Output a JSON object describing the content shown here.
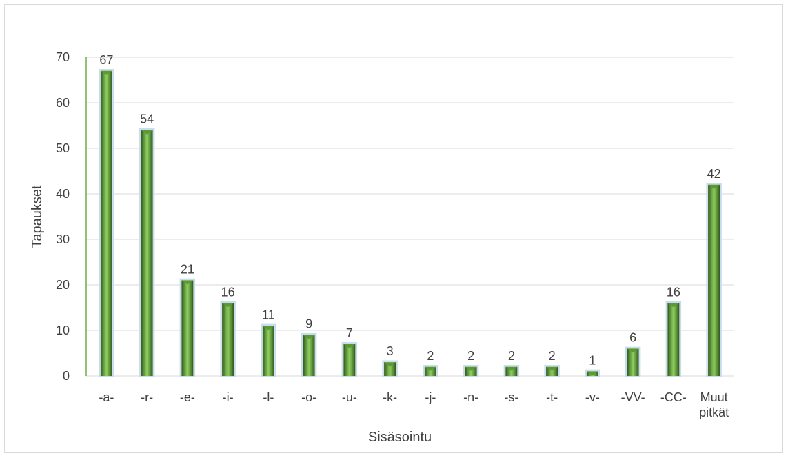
{
  "chart_data": {
    "type": "bar",
    "title": "",
    "xlabel": "Sisäsointu",
    "ylabel": "Tapaukset",
    "categories": [
      [
        "-a-"
      ],
      [
        "-r-"
      ],
      [
        "-e-"
      ],
      [
        "-i-"
      ],
      [
        "-l-"
      ],
      [
        "-o-"
      ],
      [
        "-u-"
      ],
      [
        "-k-"
      ],
      [
        "-j-"
      ],
      [
        "-n-"
      ],
      [
        "-s-"
      ],
      [
        "-t-"
      ],
      [
        "-v-"
      ],
      [
        "-VV-"
      ],
      [
        "-CC-"
      ],
      [
        "Muut",
        "pitkät"
      ]
    ],
    "values": [
      67,
      54,
      21,
      16,
      11,
      9,
      7,
      3,
      2,
      2,
      2,
      2,
      1,
      6,
      16,
      42
    ],
    "ylim": [
      0,
      70
    ],
    "yticks": [
      0,
      10,
      20,
      30,
      40,
      50,
      60,
      70
    ],
    "grid": true,
    "legend": "none",
    "colors": {
      "bar_dark": "#2f5a1c",
      "bar_mid": "#5a9a36",
      "bar_light": "#8fcf5e",
      "bar_glow": "#c9dcef",
      "gridline": "#d9d9d9",
      "text": "#404040",
      "axis_accent": "#70ad47"
    }
  }
}
